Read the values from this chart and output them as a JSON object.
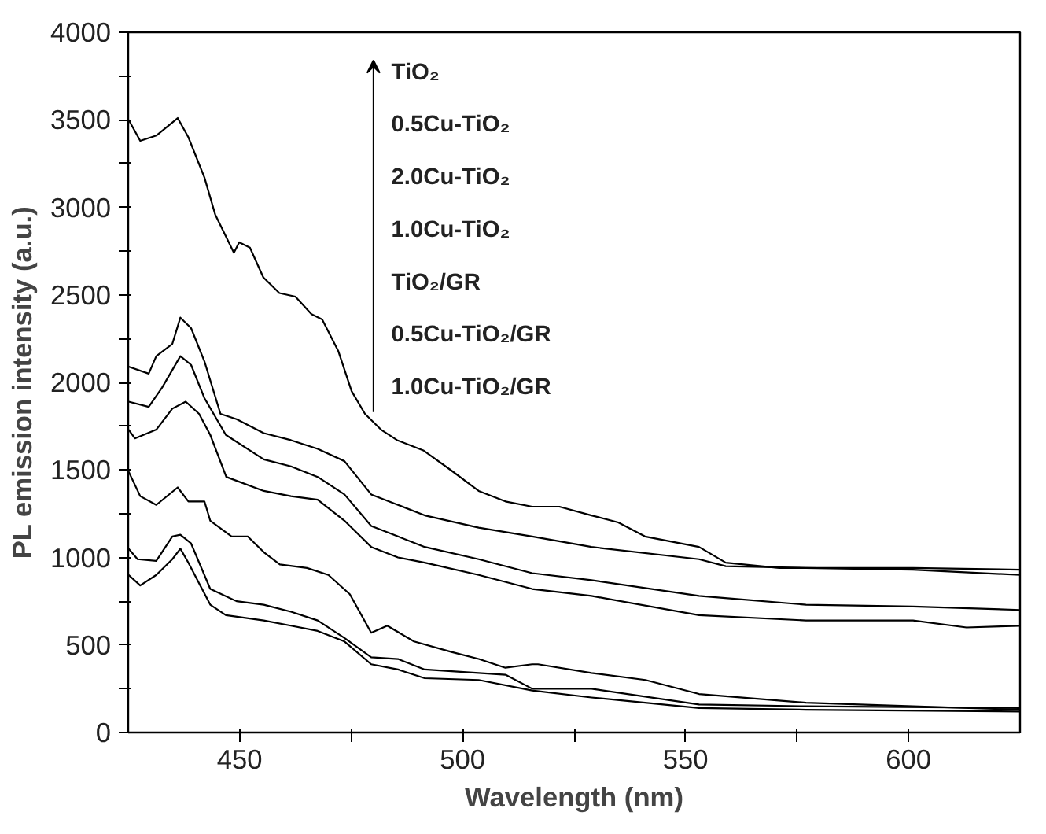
{
  "chart_data": {
    "type": "line",
    "xlabel": "Wavelength (nm)",
    "ylabel": "PL emission intensity (a.u.)",
    "xlim": [
      425,
      625
    ],
    "ylim": [
      0,
      4000
    ],
    "xticks": [
      450,
      {
        "value": 475,
        "label": null
      },
      500,
      {
        "value": 525,
        "label": null
      },
      550,
      {
        "value": 575,
        "label": null
      },
      600
    ],
    "yticks": [
      0,
      {
        "value": 250,
        "label": null
      },
      500,
      {
        "value": 750,
        "label": null
      },
      1000,
      {
        "value": 1250,
        "label": null
      },
      1500,
      {
        "value": 1750,
        "label": null
      },
      2000,
      {
        "value": 2250,
        "label": null
      },
      2500,
      {
        "value": 2750,
        "label": null
      },
      3000,
      {
        "value": 3250,
        "label": null
      },
      3500,
      {
        "value": 3750,
        "label": null
      },
      4000
    ],
    "marker": "none",
    "line_style": "solid",
    "annotations": [
      "TiO₂",
      "0.5Cu-TiO₂",
      "2.0Cu-TiO₂",
      "1.0Cu-TiO₂",
      "TiO₂/GR",
      "0.5Cu-TiO₂/GR",
      "1.0Cu-TiO₂/GR"
    ],
    "series": [
      {
        "color": "#000000",
        "x": [
          425.1,
          427.7,
          431.3,
          436.1,
          438.5,
          442.1,
          444.5,
          448.7,
          449.9,
          452.3,
          455.3,
          458.9,
          462.5,
          466.1,
          468.5,
          472.1,
          475.1,
          478.1,
          481.7,
          485.3,
          491.3,
          497.3,
          503.6,
          509.6,
          515.6,
          521.7,
          528.9,
          534.9,
          540.9,
          553,
          559,
          571,
          589,
          601,
          625
        ],
        "values": [
          3500,
          3380,
          3410,
          3510,
          3400,
          3170,
          2960,
          2740,
          2800,
          2770,
          2600,
          2510,
          2490,
          2390,
          2360,
          2180,
          1950,
          1820,
          1730,
          1670,
          1610,
          1500,
          1380,
          1320,
          1290,
          1290,
          1240,
          1200,
          1120,
          1060,
          970,
          940,
          940,
          940,
          930
        ]
      },
      {
        "color": "#000000",
        "x": [
          425.1,
          429.6,
          431.3,
          434.9,
          436.7,
          439.1,
          442.1,
          445.7,
          449.3,
          455.4,
          461.5,
          467.5,
          473.5,
          479.5,
          485.5,
          491.5,
          503.6,
          515.6,
          528.9,
          553,
          559,
          577,
          601,
          625
        ],
        "values": [
          2090,
          2050,
          2150,
          2220,
          2370,
          2310,
          2120,
          1820,
          1790,
          1710,
          1670,
          1620,
          1550,
          1360,
          1300,
          1240,
          1170,
          1120,
          1060,
          990,
          950,
          940,
          930,
          900
        ]
      },
      {
        "color": "#000000",
        "x": [
          425.1,
          429.6,
          432.6,
          436.7,
          439.1,
          442.1,
          446.9,
          455.4,
          461.5,
          467.5,
          473.5,
          479.5,
          485.5,
          491.5,
          503.6,
          515.6,
          528.9,
          553,
          577,
          601,
          625
        ],
        "values": [
          1890,
          1860,
          1970,
          2150,
          2100,
          1910,
          1700,
          1560,
          1520,
          1460,
          1360,
          1180,
          1120,
          1060,
          990,
          910,
          870,
          780,
          730,
          720,
          700
        ]
      },
      {
        "color": "#000000",
        "x": [
          425.1,
          426.5,
          431.3,
          434.9,
          437.9,
          440.9,
          443.4,
          447.0,
          455.4,
          461.5,
          467.5,
          473.5,
          479.5,
          485.5,
          491.5,
          503.6,
          515.6,
          528.9,
          553,
          577,
          589,
          601,
          613,
          625
        ],
        "values": [
          1730,
          1680,
          1730,
          1850,
          1890,
          1820,
          1700,
          1460,
          1380,
          1350,
          1330,
          1210,
          1060,
          1000,
          970,
          900,
          820,
          780,
          670,
          640,
          640,
          640,
          600,
          610
        ]
      },
      {
        "color": "#000000",
        "x": [
          425.1,
          427.7,
          431.3,
          436.1,
          438.5,
          442.1,
          443.4,
          448.2,
          451.8,
          455.4,
          459.0,
          465.1,
          469.9,
          474.7,
          479.5,
          483.1,
          489.1,
          497.5,
          503.6,
          509.6,
          515.6,
          516.9,
          528.9,
          541,
          553,
          577,
          601,
          625
        ],
        "values": [
          1490,
          1350,
          1300,
          1400,
          1320,
          1320,
          1210,
          1120,
          1120,
          1030,
          960,
          940,
          900,
          790,
          570,
          610,
          520,
          460,
          420,
          370,
          390,
          390,
          340,
          300,
          220,
          170,
          150,
          130
        ]
      },
      {
        "color": "#000000",
        "x": [
          425.1,
          427.1,
          431.3,
          434.9,
          436.7,
          439.1,
          443.4,
          449.3,
          455.4,
          461.5,
          467.5,
          473.5,
          479.5,
          485.5,
          491.5,
          503.6,
          509.6,
          515.6,
          528.9,
          553,
          577,
          625
        ],
        "values": [
          1050,
          990,
          980,
          1120,
          1130,
          1080,
          820,
          750,
          730,
          690,
          640,
          540,
          430,
          420,
          360,
          340,
          330,
          250,
          250,
          160,
          150,
          140
        ]
      },
      {
        "color": "#000000",
        "x": [
          425.1,
          427.7,
          431.3,
          434.9,
          436.7,
          438.5,
          443.4,
          446.9,
          455.4,
          461.5,
          467.5,
          473.5,
          479.5,
          485.5,
          491.5,
          503.6,
          515.6,
          528.9,
          553,
          577,
          625
        ],
        "values": [
          900,
          840,
          900,
          990,
          1050,
          970,
          730,
          670,
          640,
          610,
          580,
          520,
          390,
          360,
          310,
          300,
          240,
          200,
          140,
          130,
          120
        ]
      }
    ]
  }
}
